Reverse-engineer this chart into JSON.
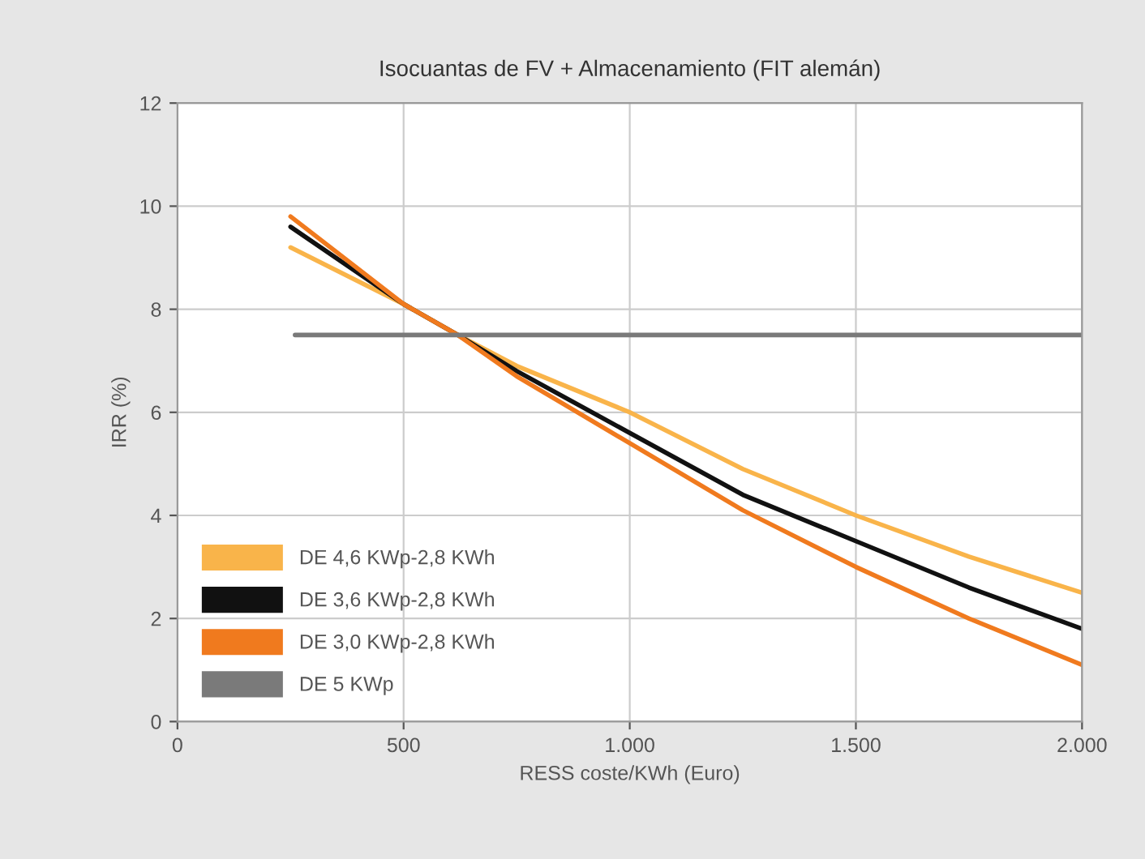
{
  "chart_data": {
    "type": "line",
    "title": "Isocuantas de FV + Almacenamiento (FIT alemán)",
    "xlabel": "RESS coste/KWh (Euro)",
    "ylabel": "IRR (%)",
    "xlim": [
      0,
      2000
    ],
    "xticks": [
      {
        "value": 0,
        "label": "0"
      },
      {
        "value": 500,
        "label": "500"
      },
      {
        "value": 1000,
        "label": "1.000"
      },
      {
        "value": 1500,
        "label": "1.500"
      },
      {
        "value": 2000,
        "label": "2.000"
      }
    ],
    "ylim": [
      0,
      12
    ],
    "yticks": [
      0,
      2,
      4,
      6,
      8,
      10,
      12
    ],
    "grid": true,
    "legend": "bottom left",
    "series": [
      {
        "name": "DE 4,6 KWp-2,8 KWh",
        "color": "#f9b44a",
        "x": [
          250,
          500,
          620,
          750,
          1000,
          1250,
          1500,
          1750,
          2000
        ],
        "values": [
          9.2,
          8.1,
          7.5,
          6.9,
          6.0,
          4.9,
          4.0,
          3.2,
          2.5
        ]
      },
      {
        "name": "DE 3,6 KWp-2,8 KWh",
        "color": "#111111",
        "x": [
          250,
          500,
          620,
          750,
          1000,
          1250,
          1500,
          1750,
          2000
        ],
        "values": [
          9.6,
          8.1,
          7.5,
          6.8,
          5.6,
          4.4,
          3.5,
          2.6,
          1.8
        ]
      },
      {
        "name": "DE 3,0 KWp-2,8 KWh",
        "color": "#f07a1e",
        "x": [
          250,
          500,
          620,
          750,
          1000,
          1250,
          1500,
          1750,
          2000
        ],
        "values": [
          9.8,
          8.1,
          7.5,
          6.7,
          5.4,
          4.1,
          3.0,
          2.0,
          1.1
        ]
      },
      {
        "name": "DE 5 KWp",
        "color": "#7a7a7a",
        "x": [
          260,
          2000
        ],
        "values": [
          7.5,
          7.5
        ]
      }
    ]
  }
}
